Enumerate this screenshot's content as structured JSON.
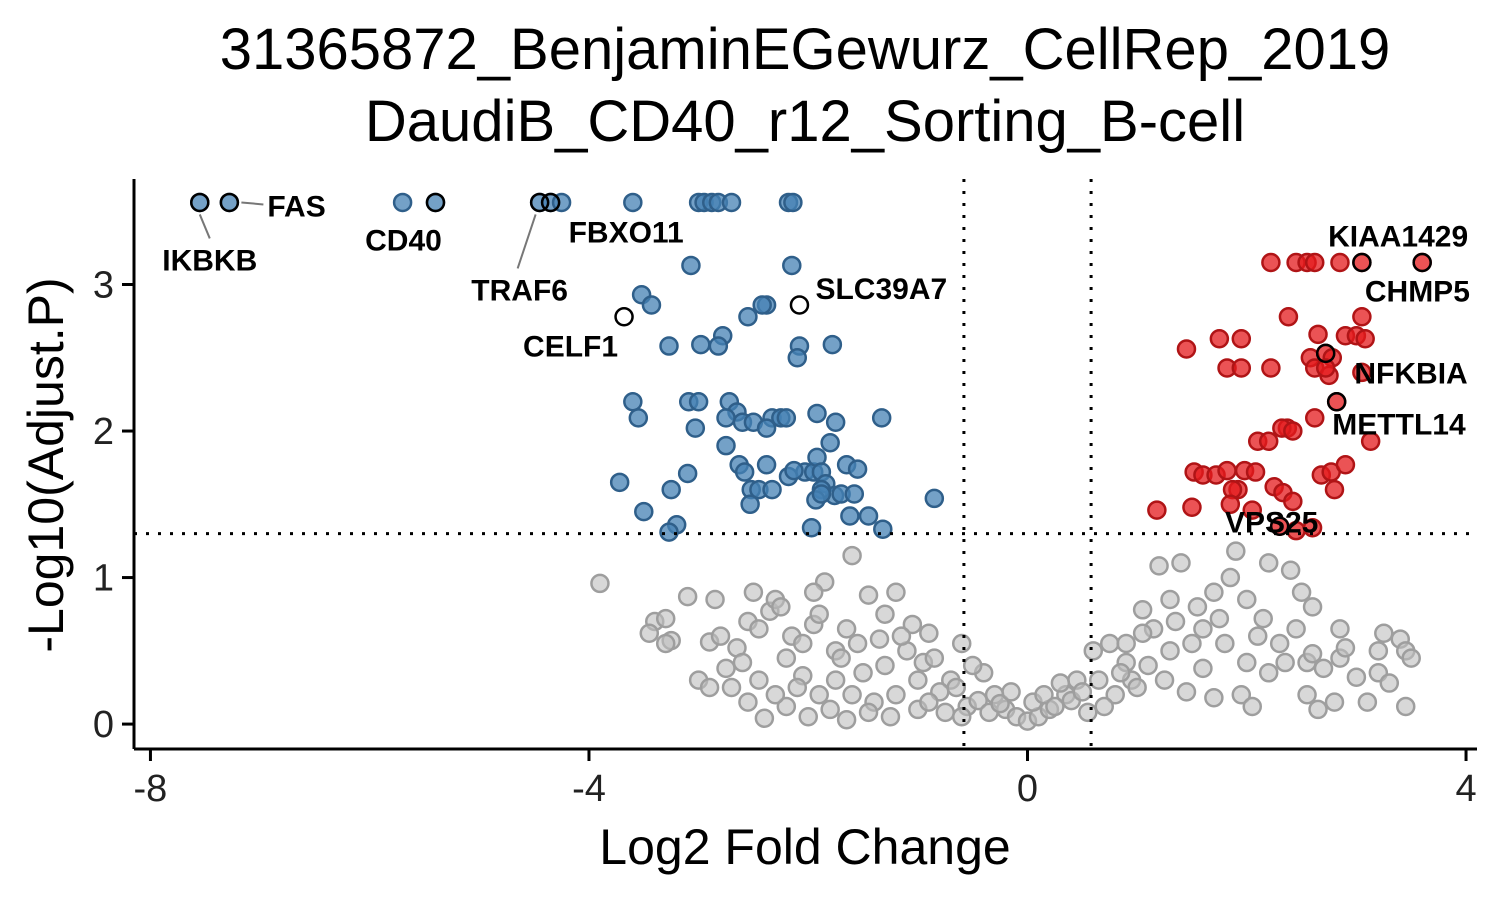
{
  "chart_data": {
    "type": "scatter",
    "title": [
      "31365872_BenjaminEGewurz_CellRep_2019",
      "DaudiB_CD40_r12_Sorting_B-cell"
    ],
    "xlabel": "Log2 Fold Change",
    "ylabel": "-Log10(Adjust.P)",
    "xlim": [
      -8.15,
      4.1
    ],
    "ylim": [
      -0.17,
      3.72
    ],
    "x_ticks": [
      -8,
      -4,
      0,
      4
    ],
    "x_tick_labels": [
      "-8",
      "-4",
      "0",
      "4"
    ],
    "y_ticks": [
      0,
      1,
      2,
      3
    ],
    "y_tick_labels": [
      "0",
      "1",
      "2",
      "3"
    ],
    "thresholds": {
      "x": [
        -0.58,
        0.58
      ],
      "y": 1.3
    },
    "grid": false,
    "legend": "none",
    "colors": {
      "down": "#4682B4",
      "up": "#E41A1C",
      "ns": "#BEBEBE"
    },
    "series": [
      {
        "values": [
          [
            -7.55,
            3.56
          ],
          [
            -7.28,
            3.56
          ],
          [
            -5.7,
            3.56
          ],
          [
            -5.4,
            3.56
          ],
          [
            -4.45,
            3.56
          ],
          [
            -4.35,
            3.56
          ],
          [
            -4.25,
            3.56
          ],
          [
            -3.6,
            3.56
          ],
          [
            -3.0,
            3.56
          ],
          [
            -2.95,
            3.56
          ],
          [
            -2.88,
            3.56
          ],
          [
            -2.82,
            3.56
          ],
          [
            -2.7,
            3.56
          ],
          [
            -2.18,
            3.56
          ],
          [
            -2.14,
            3.56
          ],
          [
            -3.07,
            3.13
          ],
          [
            -2.15,
            3.13
          ],
          [
            -3.52,
            2.93
          ],
          [
            -3.43,
            2.86
          ],
          [
            -2.38,
            2.86
          ],
          [
            -2.42,
            2.86
          ],
          [
            -2.55,
            2.78
          ],
          [
            -2.98,
            2.59
          ],
          [
            -2.78,
            2.65
          ],
          [
            -2.82,
            2.58
          ],
          [
            -3.27,
            2.58
          ],
          [
            -2.08,
            2.58
          ],
          [
            -2.1,
            2.5
          ],
          [
            -1.78,
            2.59
          ],
          [
            -3.6,
            2.2
          ],
          [
            -3.55,
            2.09
          ],
          [
            -3.09,
            2.2
          ],
          [
            -3.0,
            2.2
          ],
          [
            -2.72,
            2.2
          ],
          [
            -2.65,
            2.13
          ],
          [
            -2.6,
            2.06
          ],
          [
            -2.75,
            2.09
          ],
          [
            -2.5,
            2.06
          ],
          [
            -2.33,
            2.09
          ],
          [
            -2.25,
            2.09
          ],
          [
            -2.2,
            2.09
          ],
          [
            -2.38,
            2.02
          ],
          [
            -3.03,
            2.02
          ],
          [
            -2.75,
            1.9
          ],
          [
            -1.92,
            2.12
          ],
          [
            -1.75,
            2.06
          ],
          [
            -1.33,
            2.09
          ],
          [
            -1.8,
            1.92
          ],
          [
            -2.63,
            1.77
          ],
          [
            -2.58,
            1.72
          ],
          [
            -2.38,
            1.77
          ],
          [
            -2.52,
            1.6
          ],
          [
            -2.45,
            1.6
          ],
          [
            -2.03,
            1.72
          ],
          [
            -1.95,
            1.72
          ],
          [
            -1.92,
            1.82
          ],
          [
            -1.88,
            1.72
          ],
          [
            -1.84,
            1.64
          ],
          [
            -1.76,
            1.56
          ],
          [
            -1.7,
            1.57
          ],
          [
            -1.65,
            1.77
          ],
          [
            -1.55,
            1.74
          ],
          [
            -1.58,
            1.57
          ],
          [
            -1.88,
            1.6
          ],
          [
            -3.1,
            1.71
          ],
          [
            -3.72,
            1.65
          ],
          [
            -3.25,
            1.6
          ],
          [
            -3.5,
            1.45
          ],
          [
            -2.53,
            1.5
          ],
          [
            -2.18,
            1.69
          ],
          [
            -1.93,
            1.53
          ],
          [
            -1.88,
            1.57
          ],
          [
            -1.62,
            1.42
          ],
          [
            -1.45,
            1.42
          ],
          [
            -1.32,
            1.33
          ],
          [
            -0.85,
            1.54
          ],
          [
            -1.97,
            1.34
          ],
          [
            -3.2,
            1.36
          ],
          [
            -3.27,
            1.31
          ],
          [
            -2.13,
            1.73
          ],
          [
            -2.33,
            1.6
          ]
        ]
      },
      {
        "values": [
          [
            2.22,
            3.15
          ],
          [
            2.45,
            3.15
          ],
          [
            2.55,
            3.15
          ],
          [
            2.62,
            3.15
          ],
          [
            2.85,
            3.15
          ],
          [
            3.05,
            3.15
          ],
          [
            3.6,
            3.15
          ],
          [
            2.38,
            2.78
          ],
          [
            3.05,
            2.78
          ],
          [
            1.75,
            2.63
          ],
          [
            1.95,
            2.63
          ],
          [
            2.65,
            2.66
          ],
          [
            2.9,
            2.65
          ],
          [
            3.0,
            2.65
          ],
          [
            3.08,
            2.63
          ],
          [
            1.45,
            2.56
          ],
          [
            1.82,
            2.43
          ],
          [
            1.95,
            2.43
          ],
          [
            2.22,
            2.43
          ],
          [
            2.58,
            2.5
          ],
          [
            2.72,
            2.53
          ],
          [
            2.78,
            2.5
          ],
          [
            2.62,
            2.43
          ],
          [
            2.75,
            2.38
          ],
          [
            2.72,
            2.43
          ],
          [
            3.05,
            2.4
          ],
          [
            2.82,
            2.2
          ],
          [
            2.62,
            2.09
          ],
          [
            2.37,
            2.02
          ],
          [
            2.32,
            2.02
          ],
          [
            2.42,
            2.0
          ],
          [
            2.1,
            1.93
          ],
          [
            2.2,
            1.93
          ],
          [
            3.13,
            1.93
          ],
          [
            1.52,
            1.72
          ],
          [
            1.6,
            1.7
          ],
          [
            1.72,
            1.7
          ],
          [
            1.82,
            1.73
          ],
          [
            1.98,
            1.73
          ],
          [
            1.92,
            1.6
          ],
          [
            2.08,
            1.72
          ],
          [
            2.25,
            1.62
          ],
          [
            2.33,
            1.58
          ],
          [
            2.42,
            1.52
          ],
          [
            2.68,
            1.7
          ],
          [
            2.77,
            1.72
          ],
          [
            2.9,
            1.77
          ],
          [
            2.8,
            1.6
          ],
          [
            1.87,
            1.6
          ],
          [
            1.18,
            1.46
          ],
          [
            1.5,
            1.48
          ],
          [
            1.85,
            1.5
          ],
          [
            2.05,
            1.46
          ],
          [
            2.45,
            1.32
          ],
          [
            2.6,
            1.34
          ],
          [
            2.3,
            1.35
          ]
        ]
      },
      {
        "values": [
          [
            -3.9,
            0.96
          ],
          [
            -3.4,
            0.7
          ],
          [
            -3.3,
            0.72
          ],
          [
            -3.25,
            0.57
          ],
          [
            -3.1,
            0.87
          ],
          [
            -2.9,
            0.56
          ],
          [
            -2.85,
            0.85
          ],
          [
            -2.75,
            0.38
          ],
          [
            -2.65,
            0.52
          ],
          [
            -2.55,
            0.7
          ],
          [
            -2.45,
            0.65
          ],
          [
            -2.5,
            0.9
          ],
          [
            -2.35,
            0.77
          ],
          [
            -2.3,
            0.85
          ],
          [
            -2.2,
            0.45
          ],
          [
            -2.15,
            0.6
          ],
          [
            -2.05,
            0.55
          ],
          [
            -1.95,
            0.68
          ],
          [
            -1.85,
            0.97
          ],
          [
            -1.75,
            0.5
          ],
          [
            -1.6,
            1.15
          ],
          [
            -1.45,
            0.88
          ],
          [
            -1.3,
            0.75
          ],
          [
            -1.2,
            0.9
          ],
          [
            -1.05,
            0.68
          ],
          [
            -0.9,
            0.62
          ],
          [
            -0.6,
            0.55
          ],
          [
            -0.4,
            0.35
          ],
          [
            -0.3,
            0.2
          ],
          [
            -0.2,
            0.1
          ],
          [
            -0.1,
            0.05
          ],
          [
            0.0,
            0.02
          ],
          [
            0.1,
            0.05
          ],
          [
            0.2,
            0.1
          ],
          [
            0.35,
            0.2
          ],
          [
            0.45,
            0.3
          ],
          [
            0.6,
            0.5
          ],
          [
            0.75,
            0.55
          ],
          [
            0.9,
            0.42
          ],
          [
            1.05,
            0.78
          ],
          [
            1.15,
            0.65
          ],
          [
            1.3,
            0.85
          ],
          [
            1.4,
            1.1
          ],
          [
            1.55,
            0.8
          ],
          [
            1.7,
            0.9
          ],
          [
            1.85,
            1.0
          ],
          [
            2.0,
            0.85
          ],
          [
            2.15,
            0.72
          ],
          [
            2.3,
            0.55
          ],
          [
            2.45,
            0.65
          ],
          [
            2.55,
            0.42
          ],
          [
            2.7,
            0.38
          ],
          [
            2.85,
            0.45
          ],
          [
            3.0,
            0.32
          ],
          [
            3.2,
            0.35
          ],
          [
            3.3,
            0.28
          ],
          [
            1.2,
            1.08
          ],
          [
            1.9,
            1.18
          ],
          [
            2.2,
            1.1
          ],
          [
            2.4,
            1.05
          ],
          [
            2.5,
            0.9
          ],
          [
            1.6,
            0.38
          ],
          [
            1.8,
            0.55
          ],
          [
            2.0,
            0.42
          ],
          [
            2.2,
            0.35
          ],
          [
            2.35,
            0.42
          ],
          [
            2.1,
            0.6
          ],
          [
            1.5,
            0.55
          ],
          [
            1.3,
            0.5
          ],
          [
            1.1,
            0.4
          ],
          [
            0.95,
            0.3
          ],
          [
            0.8,
            0.2
          ],
          [
            0.7,
            0.12
          ],
          [
            0.55,
            0.08
          ],
          [
            -0.5,
            0.4
          ],
          [
            -0.7,
            0.3
          ],
          [
            -0.8,
            0.22
          ],
          [
            -1.0,
            0.3
          ],
          [
            -1.2,
            0.2
          ],
          [
            -1.4,
            0.15
          ],
          [
            -1.6,
            0.2
          ],
          [
            -1.8,
            0.1
          ],
          [
            -2.0,
            0.05
          ],
          [
            -2.2,
            0.12
          ],
          [
            -2.4,
            0.04
          ],
          [
            -1.3,
            0.4
          ],
          [
            -1.5,
            0.35
          ],
          [
            -1.7,
            0.45
          ],
          [
            -1.1,
            0.5
          ],
          [
            -0.95,
            0.42
          ],
          [
            -2.6,
            0.42
          ],
          [
            -2.7,
            0.25
          ],
          [
            -3.0,
            0.3
          ],
          [
            -2.9,
            0.25
          ],
          [
            -3.3,
            0.55
          ],
          [
            -3.45,
            0.62
          ],
          [
            -2.8,
            0.6
          ],
          [
            -2.25,
            0.8
          ],
          [
            -1.95,
            0.9
          ],
          [
            -1.65,
            0.65
          ],
          [
            -1.9,
            0.75
          ],
          [
            -2.05,
            0.33
          ],
          [
            -1.75,
            0.3
          ],
          [
            -1.55,
            0.55
          ],
          [
            -1.35,
            0.58
          ],
          [
            -1.15,
            0.6
          ],
          [
            -0.85,
            0.45
          ],
          [
            -0.65,
            0.25
          ],
          [
            2.65,
            0.1
          ],
          [
            2.55,
            0.2
          ],
          [
            2.8,
            0.15
          ],
          [
            3.1,
            0.15
          ],
          [
            3.45,
            0.12
          ],
          [
            3.4,
            0.58
          ],
          [
            3.45,
            0.5
          ],
          [
            3.2,
            0.5
          ],
          [
            2.9,
            0.52
          ],
          [
            2.6,
            0.48
          ],
          [
            3.5,
            0.45
          ],
          [
            2.6,
            0.8
          ],
          [
            2.85,
            0.65
          ],
          [
            3.25,
            0.62
          ],
          [
            -0.55,
            0.12
          ],
          [
            -0.45,
            0.16
          ],
          [
            -0.35,
            0.08
          ],
          [
            -0.25,
            0.14
          ],
          [
            -0.15,
            0.22
          ],
          [
            0.05,
            0.15
          ],
          [
            0.15,
            0.2
          ],
          [
            0.25,
            0.12
          ],
          [
            0.3,
            0.28
          ],
          [
            0.4,
            0.16
          ],
          [
            0.5,
            0.22
          ],
          [
            0.65,
            0.3
          ],
          [
            0.85,
            0.35
          ],
          [
            1.0,
            0.25
          ],
          [
            1.25,
            0.3
          ],
          [
            1.45,
            0.22
          ],
          [
            1.7,
            0.18
          ],
          [
            1.95,
            0.2
          ],
          [
            2.05,
            0.12
          ],
          [
            1.75,
            0.72
          ],
          [
            1.35,
            0.7
          ],
          [
            1.05,
            0.62
          ],
          [
            0.9,
            0.55
          ],
          [
            1.6,
            0.65
          ],
          [
            -1.0,
            0.1
          ],
          [
            -0.75,
            0.08
          ],
          [
            -1.25,
            0.05
          ],
          [
            -1.45,
            0.08
          ],
          [
            -1.65,
            0.03
          ],
          [
            -1.9,
            0.2
          ],
          [
            -2.1,
            0.25
          ],
          [
            -2.3,
            0.2
          ],
          [
            -2.45,
            0.3
          ],
          [
            -2.55,
            0.15
          ],
          [
            -0.9,
            0.15
          ],
          [
            -0.6,
            0.05
          ]
        ]
      }
    ],
    "annotations": [
      {
        "text": "IKBKB",
        "x": -7.55,
        "y": 3.56
      },
      {
        "text": "FAS",
        "x": -7.28,
        "y": 3.56
      },
      {
        "text": "CD40",
        "x": -5.4,
        "y": 3.56
      },
      {
        "text": "FBXO11",
        "x": -4.35,
        "y": 3.56
      },
      {
        "text": "TRAF6",
        "x": -4.45,
        "y": 3.56
      },
      {
        "text": "SLC39A7",
        "x": -2.08,
        "y": 2.86
      },
      {
        "text": "CELF1",
        "x": -3.68,
        "y": 2.78
      },
      {
        "text": "KIAA1429",
        "x": 3.6,
        "y": 3.15
      },
      {
        "text": "CHMP5",
        "x": 3.05,
        "y": 3.15
      },
      {
        "text": "NFKBIA",
        "x": 2.72,
        "y": 2.53
      },
      {
        "text": "METTL14",
        "x": 2.82,
        "y": 2.2
      },
      {
        "text": "VPS25",
        "x": 2.3,
        "y": 1.35
      }
    ]
  }
}
